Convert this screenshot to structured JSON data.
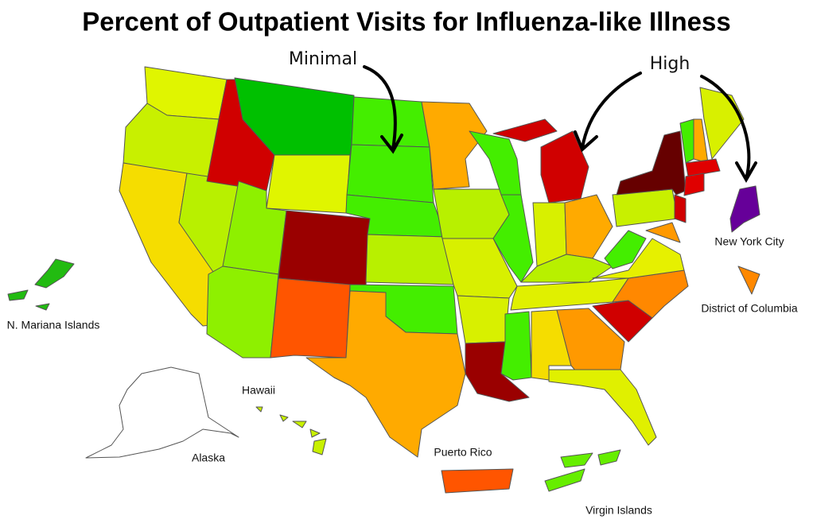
{
  "title": "Percent of Outpatient Visits for Influenza-like Illness",
  "annotations": {
    "minimal": "Minimal",
    "high": "High"
  },
  "labels": {
    "nyc": "New York City",
    "dc": "District of Columbia",
    "nmi": "N. Mariana Islands",
    "hawaii": "Hawaii",
    "alaska": "Alaska",
    "puerto_rico": "Puerto Rico",
    "virgin_islands": "Virgin Islands"
  }
}
